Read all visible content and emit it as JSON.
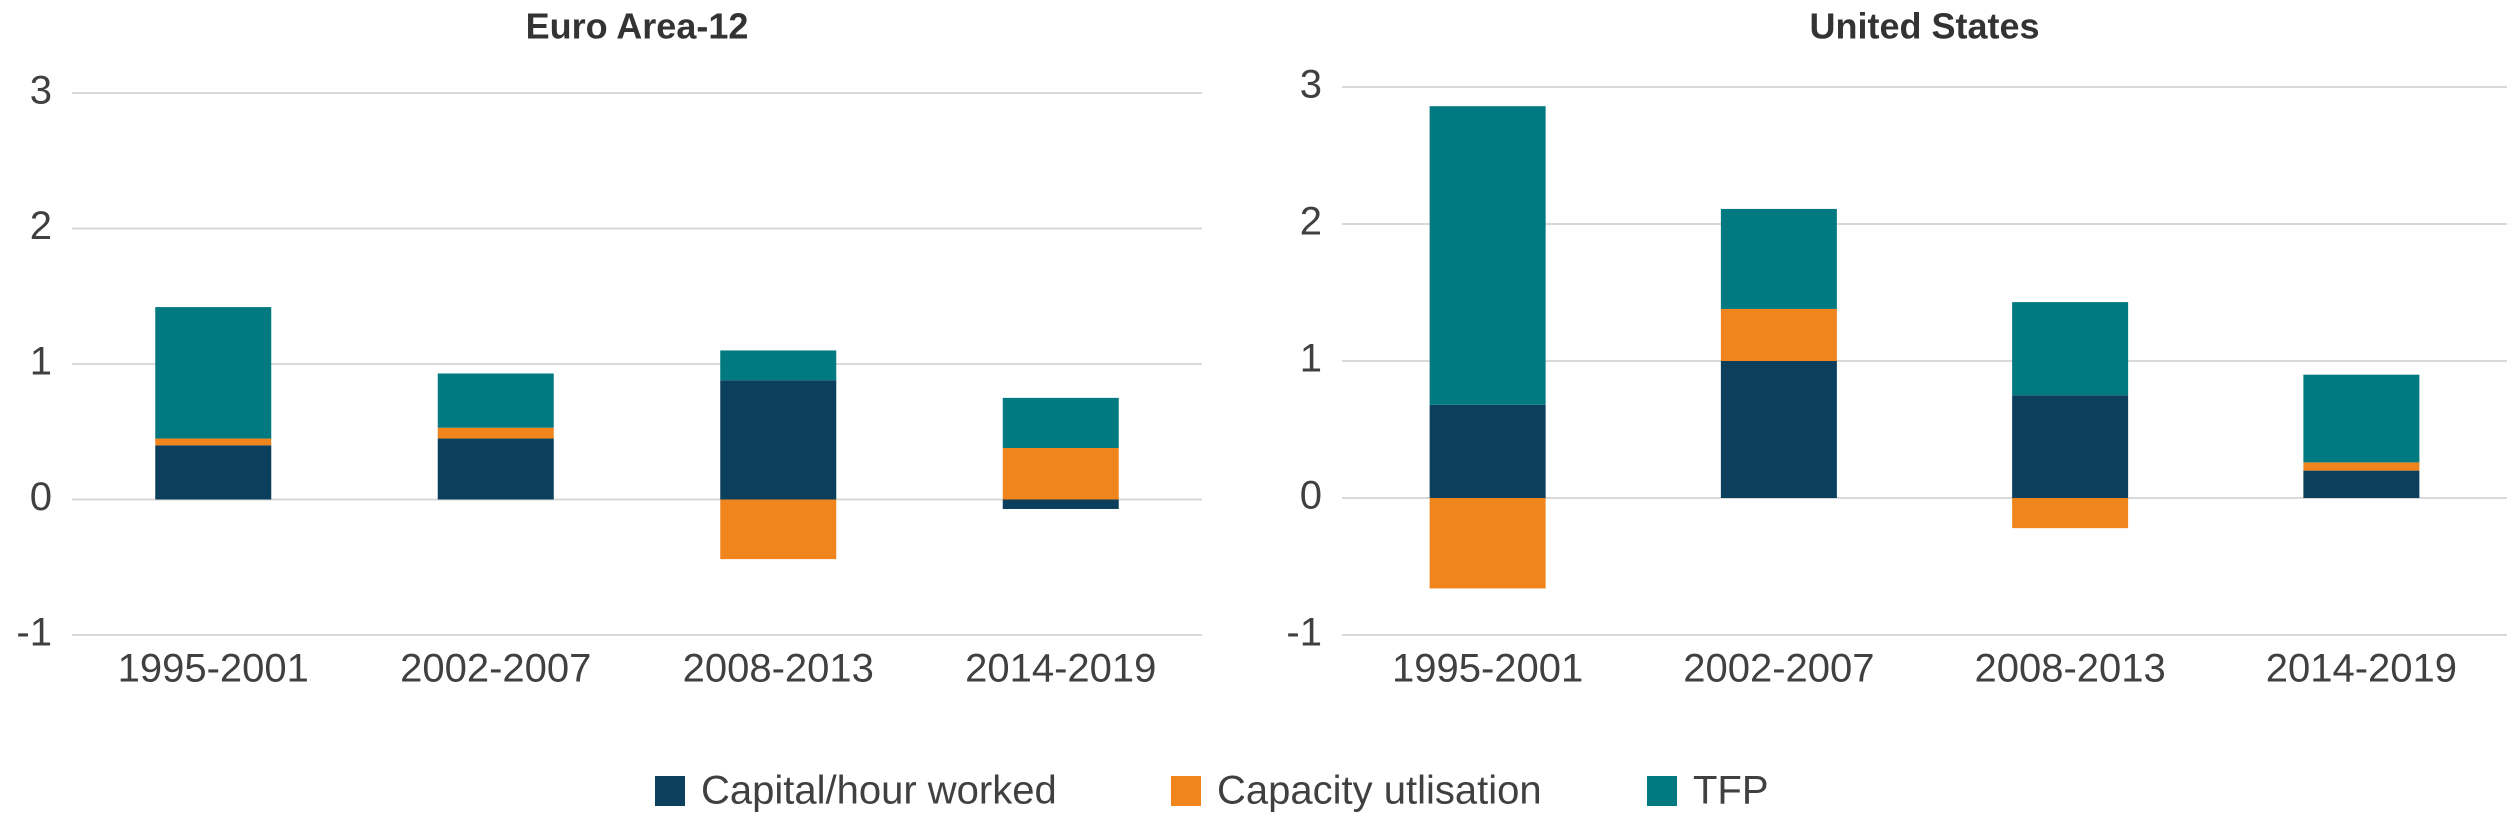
{
  "chart_data": [
    {
      "type": "bar",
      "stacked": true,
      "title": "Euro Area-12",
      "categories": [
        "1995-2001",
        "2002-2007",
        "2008-2013",
        "2014-2019"
      ],
      "series": [
        {
          "name": "Capital/hour worked",
          "color": "#0b3f5c",
          "values": [
            0.4,
            0.45,
            0.88,
            -0.07
          ]
        },
        {
          "name": "Capacity utlisation",
          "color": "#f0851e",
          "values": [
            0.05,
            0.08,
            -0.44,
            0.38
          ]
        },
        {
          "name": "TFP",
          "color": "#007a80",
          "values": [
            0.97,
            0.4,
            0.22,
            0.37
          ]
        }
      ],
      "ylim": [
        -1,
        3
      ],
      "yticks": [
        -1,
        0,
        1,
        2,
        3
      ],
      "grid": true
    },
    {
      "type": "bar",
      "stacked": true,
      "title": "United States",
      "categories": [
        "1995-2001",
        "2002-2007",
        "2008-2013",
        "2014-2019"
      ],
      "series": [
        {
          "name": "Capital/hour worked",
          "color": "#0b3f5c",
          "values": [
            0.68,
            1.0,
            0.75,
            0.2
          ]
        },
        {
          "name": "Capacity utlisation",
          "color": "#f0851e",
          "values": [
            -0.66,
            0.38,
            -0.22,
            0.06
          ]
        },
        {
          "name": "TFP",
          "color": "#007a80",
          "values": [
            2.18,
            0.73,
            0.68,
            0.64
          ]
        }
      ],
      "ylim": [
        -1,
        3
      ],
      "yticks": [
        -1,
        0,
        1,
        2,
        3
      ],
      "grid": true
    }
  ]
}
